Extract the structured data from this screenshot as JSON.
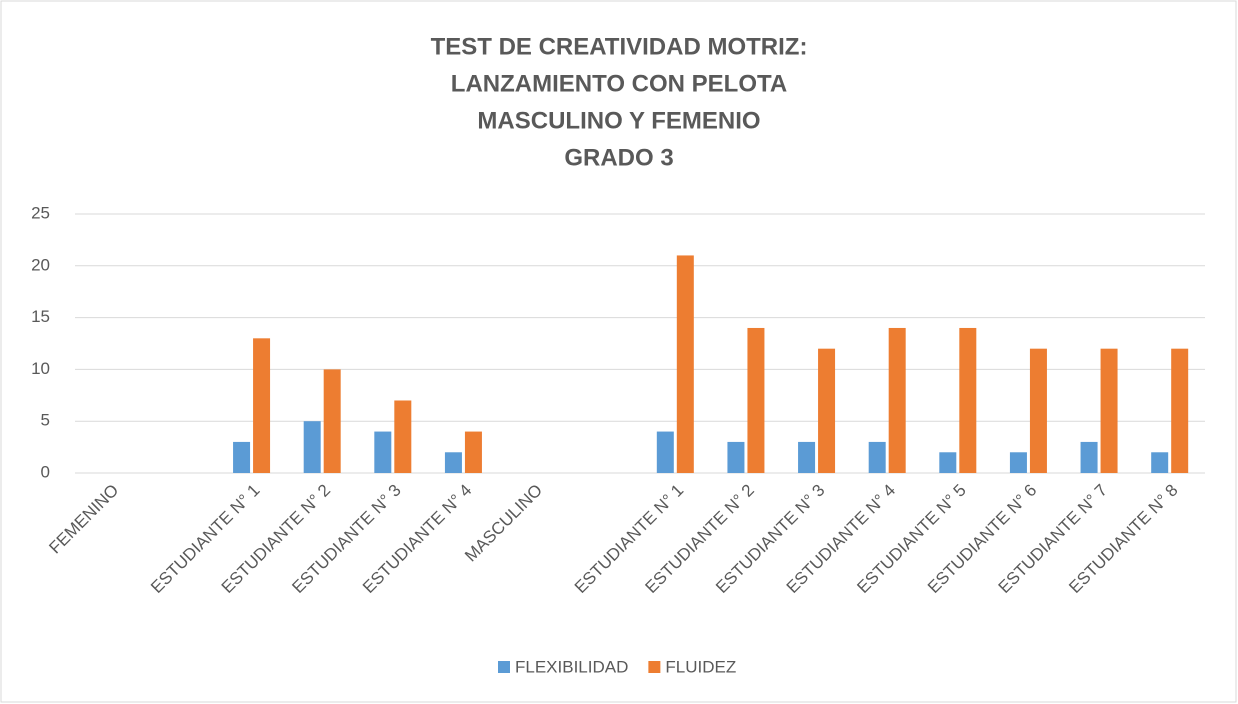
{
  "chart_data": {
    "type": "bar",
    "title": [
      "TEST DE CREATIVIDAD MOTRIZ:",
      "LANZAMIENTO CON PELOTA",
      "MASCULINO Y FEMENIO",
      "GRADO 3"
    ],
    "categories": [
      "FEMENINO",
      null,
      "ESTUDIANTE N° 1",
      "ESTUDIANTE N° 2",
      "ESTUDIANTE N° 3",
      "ESTUDIANTE N° 4",
      "MASCULINO",
      null,
      "ESTUDIANTE N° 1",
      "ESTUDIANTE N° 2",
      "ESTUDIANTE N° 3",
      "ESTUDIANTE N° 4",
      "ESTUDIANTE N° 5",
      "ESTUDIANTE N° 6",
      "ESTUDIANTE N° 7",
      "ESTUDIANTE N° 8"
    ],
    "series": [
      {
        "name": "FLEXIBILIDAD",
        "color": "#5b9bd5",
        "values": [
          null,
          null,
          3,
          5,
          4,
          2,
          null,
          null,
          4,
          3,
          3,
          3,
          2,
          2,
          3,
          2
        ]
      },
      {
        "name": "FLUIDEZ",
        "color": "#ed7d31",
        "values": [
          null,
          null,
          13,
          10,
          7,
          4,
          null,
          null,
          21,
          14,
          12,
          14,
          14,
          12,
          12,
          12
        ]
      }
    ],
    "ylim": [
      0,
      25
    ],
    "yticks": [
      0,
      5,
      10,
      15,
      20,
      25
    ],
    "grid": true,
    "legend": "bottom"
  }
}
